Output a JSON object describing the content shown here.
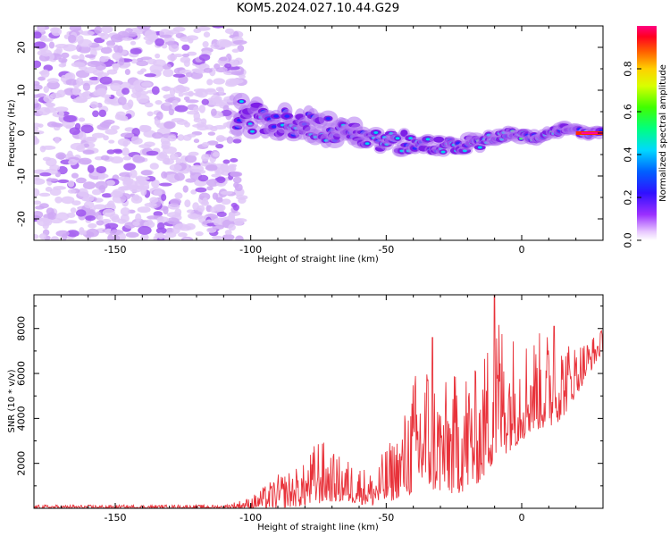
{
  "title": "KOM5.2024.027.10.44.G29",
  "colors": {
    "snr_line": "#e8323a",
    "spec_low": "#cfa8f4",
    "spec_mid": "#7d1ee6",
    "spec_hot": "#00d2f0"
  },
  "chart_data": [
    {
      "type": "heatmap",
      "name": "spectrogram",
      "xlabel": "Height of straight line (km)",
      "ylabel": "Frequency (Hz)",
      "xlim": [
        -180,
        30
      ],
      "ylim": [
        -25,
        25
      ],
      "x_ticks": [
        -150,
        -100,
        -50,
        0
      ],
      "y_ticks": [
        -20,
        -10,
        0,
        10,
        20
      ],
      "ridge": {
        "x": [
          -104,
          -95,
          -85,
          -75,
          -65,
          -55,
          -45,
          -35,
          -25,
          -15,
          -5,
          5,
          15,
          25,
          30
        ],
        "freq": [
          4,
          3,
          2,
          1,
          0,
          -1,
          -2,
          -3,
          -3,
          -2,
          0,
          -1,
          1,
          0,
          0
        ]
      },
      "colorbar": {
        "label": "Normalized spectral amplitude",
        "range": [
          0,
          1
        ],
        "ticks": [
          "0.0",
          "0.2",
          "0.4",
          "0.6",
          "0.8"
        ],
        "colormap": "gist_rainbow"
      },
      "grid": false
    },
    {
      "type": "line",
      "name": "snr",
      "xlabel": "Height of straight line (km)",
      "ylabel": "SNR (10 * v/v)",
      "xlim": [
        -180,
        30
      ],
      "ylim": [
        0,
        9500
      ],
      "x_ticks": [
        -150,
        -100,
        -50,
        0
      ],
      "y_ticks": [
        2000,
        4000,
        6000,
        8000
      ],
      "envelope": {
        "x": [
          -180,
          -150,
          -110,
          -100,
          -90,
          -80,
          -75,
          -70,
          -60,
          -55,
          -50,
          -45,
          -40,
          -35,
          -30,
          -25,
          -20,
          -15,
          -10,
          -5,
          0,
          5,
          10,
          15,
          20,
          25,
          30
        ],
        "lo": [
          0,
          0,
          0,
          0,
          0,
          100,
          200,
          300,
          200,
          100,
          200,
          500,
          600,
          800,
          700,
          600,
          800,
          1200,
          2000,
          2500,
          3000,
          3500,
          3500,
          4000,
          5000,
          6000,
          7000
        ],
        "hi": [
          150,
          150,
          150,
          500,
          1500,
          2000,
          3300,
          2500,
          2000,
          1600,
          2800,
          3500,
          6000,
          7000,
          5500,
          6000,
          6500,
          6000,
          9500,
          8000,
          7800,
          7800,
          8000,
          7600,
          7400,
          7600,
          8000
        ]
      },
      "peaks": [
        {
          "x": -10,
          "y": 9500
        },
        {
          "x": -33,
          "y": 7600
        },
        {
          "x": 12,
          "y": 8100
        }
      ],
      "grid": false
    }
  ]
}
